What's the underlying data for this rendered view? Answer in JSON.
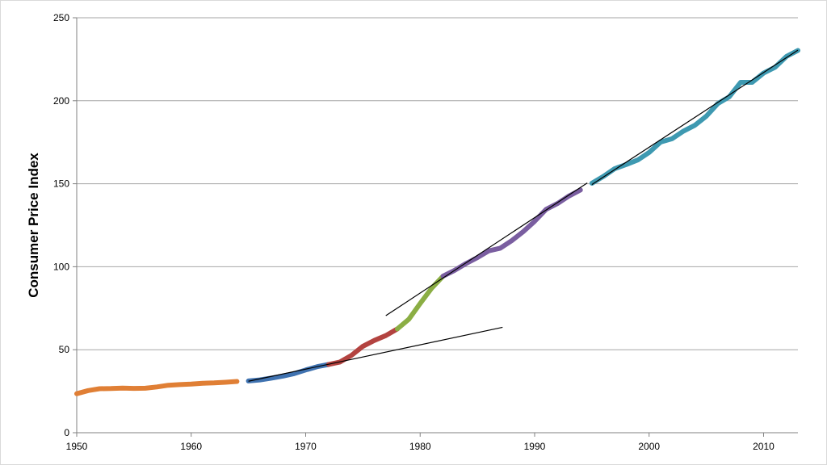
{
  "chart_data": {
    "type": "line",
    "title": "",
    "xlabel": "",
    "ylabel": "Consumer Price Index",
    "xlim": [
      1950,
      2013
    ],
    "ylim": [
      0,
      250
    ],
    "x_ticks": [
      1950,
      1960,
      1970,
      1980,
      1990,
      2000,
      2010
    ],
    "y_ticks": [
      0,
      50,
      100,
      150,
      200,
      250
    ],
    "grid": "horizontal",
    "legend": "none",
    "series": [
      {
        "color": "#e07f35",
        "x": [
          1950,
          1951,
          1952,
          1953,
          1954,
          1955,
          1956,
          1957,
          1958,
          1959,
          1960,
          1961,
          1962,
          1963,
          1964
        ],
        "values": [
          23.5,
          25.4,
          26.5,
          26.6,
          26.9,
          26.7,
          26.8,
          27.6,
          28.6,
          29.0,
          29.3,
          29.8,
          30.0,
          30.4,
          30.9
        ]
      },
      {
        "color": "#3f72b0",
        "x": [
          1965,
          1966,
          1967,
          1968,
          1969,
          1970,
          1971,
          1972
        ],
        "values": [
          31.2,
          31.8,
          32.9,
          34.1,
          35.6,
          37.8,
          39.8,
          41.1
        ]
      },
      {
        "color": "#b34340",
        "x": [
          1972,
          1973,
          1974,
          1975,
          1976,
          1977,
          1978
        ],
        "values": [
          41.1,
          42.6,
          46.6,
          52.1,
          55.6,
          58.5,
          62.5
        ]
      },
      {
        "color": "#8bae44",
        "x": [
          1978,
          1979,
          1980,
          1981,
          1982
        ],
        "values": [
          62.5,
          68.3,
          77.8,
          87.0,
          94.3
        ]
      },
      {
        "color": "#7a5ea0",
        "x": [
          1982,
          1983,
          1984,
          1985,
          1986,
          1987,
          1988,
          1989,
          1990,
          1991,
          1992,
          1993,
          1994
        ],
        "values": [
          94.3,
          97.8,
          101.9,
          105.5,
          109.6,
          111.2,
          115.7,
          121.1,
          127.4,
          134.6,
          138.1,
          142.6,
          146.2
        ]
      },
      {
        "color": "#3e99b1",
        "x": [
          1995,
          1996,
          1997,
          1998,
          1999,
          2000,
          2001,
          2002,
          2003,
          2004,
          2005,
          2006,
          2007,
          2008,
          2009,
          2010,
          2011,
          2012,
          2013
        ],
        "values": [
          150.3,
          154.4,
          159.1,
          161.6,
          164.3,
          168.8,
          175.1,
          177.1,
          181.7,
          185.2,
          190.7,
          198.3,
          202.4,
          211.1,
          211.1,
          216.7,
          220.2,
          226.7,
          230.3
        ]
      }
    ],
    "trendlines": [
      {
        "color": "#000000",
        "x": [
          1965,
          1987.2
        ],
        "values": [
          31,
          63.5
        ]
      },
      {
        "color": "#000000",
        "x": [
          1977,
          1994.6
        ],
        "values": [
          70.5,
          150.5
        ]
      },
      {
        "color": "#000000",
        "x": [
          1995,
          2013
        ],
        "values": [
          149.5,
          230.5
        ]
      }
    ]
  }
}
